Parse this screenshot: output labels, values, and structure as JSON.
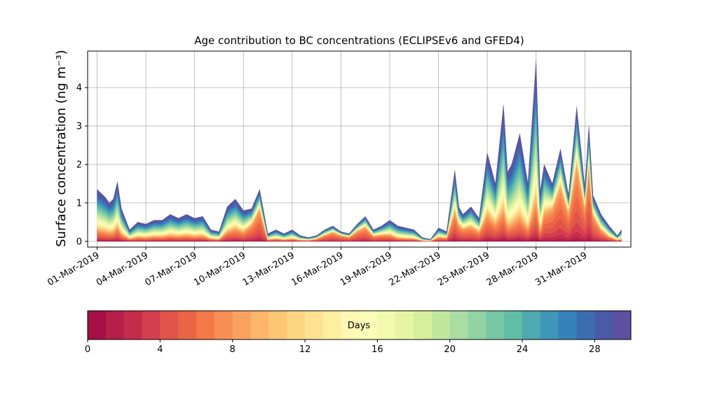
{
  "chart_data": {
    "type": "area",
    "title": "Age contribution to BC concentrations (ECLIPSEv6 and GFED4)",
    "ylabel": "Surface concentration (ng m⁻³)",
    "xlabel": "",
    "x_unit": "date",
    "ylim": [
      -0.15,
      4.95
    ],
    "xlim": [
      "2019-02-28T10:00",
      "2019-04-02T20:00"
    ],
    "grid": true,
    "stacked": true,
    "yticks": [
      0,
      1,
      2,
      3,
      4
    ],
    "xtick_labels": [
      "01-Mar-2019",
      "04-Mar-2019",
      "07-Mar-2019",
      "10-Mar-2019",
      "13-Mar-2019",
      "16-Mar-2019",
      "19-Mar-2019",
      "22-Mar-2019",
      "25-Mar-2019",
      "28-Mar-2019",
      "31-Mar-2019"
    ],
    "xtick_dates": [
      "2019-03-01",
      "2019-03-04",
      "2019-03-07",
      "2019-03-10",
      "2019-03-13",
      "2019-03-16",
      "2019-03-19",
      "2019-03-22",
      "2019-03-25",
      "2019-03-28",
      "2019-03-31"
    ],
    "total_concentration": {
      "x": [
        "2019-03-01T00:00",
        "2019-03-01T12:00",
        "2019-03-01T18:00",
        "2019-03-02T00:00",
        "2019-03-02T06:00",
        "2019-03-02T12:00",
        "2019-03-03T00:00",
        "2019-03-03T12:00",
        "2019-03-04T00:00",
        "2019-03-04T12:00",
        "2019-03-05T00:00",
        "2019-03-05T12:00",
        "2019-03-06T00:00",
        "2019-03-06T12:00",
        "2019-03-07T00:00",
        "2019-03-07T12:00",
        "2019-03-08T00:00",
        "2019-03-08T12:00",
        "2019-03-09T00:00",
        "2019-03-09T12:00",
        "2019-03-10T00:00",
        "2019-03-10T12:00",
        "2019-03-11T00:00",
        "2019-03-11T12:00",
        "2019-03-12T00:00",
        "2019-03-12T12:00",
        "2019-03-13T00:00",
        "2019-03-13T12:00",
        "2019-03-14T00:00",
        "2019-03-14T12:00",
        "2019-03-15T00:00",
        "2019-03-15T12:00",
        "2019-03-16T00:00",
        "2019-03-16T12:00",
        "2019-03-17T00:00",
        "2019-03-17T12:00",
        "2019-03-18T00:00",
        "2019-03-18T12:00",
        "2019-03-19T00:00",
        "2019-03-19T12:00",
        "2019-03-20T00:00",
        "2019-03-20T12:00",
        "2019-03-21T00:00",
        "2019-03-21T12:00",
        "2019-03-22T00:00",
        "2019-03-22T12:00",
        "2019-03-23T00:00",
        "2019-03-23T06:00",
        "2019-03-23T12:00",
        "2019-03-24T00:00",
        "2019-03-24T12:00",
        "2019-03-25T00:00",
        "2019-03-25T12:00",
        "2019-03-26T00:00",
        "2019-03-26T06:00",
        "2019-03-26T12:00",
        "2019-03-27T00:00",
        "2019-03-27T12:00",
        "2019-03-28T00:00",
        "2019-03-28T06:00",
        "2019-03-28T12:00",
        "2019-03-29T00:00",
        "2019-03-29T12:00",
        "2019-03-30T00:00",
        "2019-03-30T12:00",
        "2019-03-31T00:00",
        "2019-03-31T06:00",
        "2019-03-31T12:00",
        "2019-04-01T00:00",
        "2019-04-01T12:00",
        "2019-04-02T00:00",
        "2019-04-02T06:00"
      ],
      "y": [
        1.35,
        1.15,
        1.0,
        1.1,
        1.55,
        0.85,
        0.3,
        0.5,
        0.45,
        0.55,
        0.55,
        0.7,
        0.6,
        0.7,
        0.6,
        0.65,
        0.3,
        0.25,
        0.9,
        1.1,
        0.8,
        0.85,
        1.35,
        0.2,
        0.3,
        0.2,
        0.3,
        0.15,
        0.1,
        0.15,
        0.3,
        0.4,
        0.25,
        0.2,
        0.45,
        0.65,
        0.3,
        0.4,
        0.55,
        0.4,
        0.35,
        0.3,
        0.1,
        0.05,
        0.35,
        0.25,
        1.85,
        0.9,
        0.7,
        0.9,
        0.6,
        2.3,
        1.5,
        3.55,
        1.8,
        2.0,
        2.8,
        1.5,
        4.7,
        1.3,
        2.0,
        1.5,
        2.4,
        1.2,
        3.5,
        1.4,
        3.0,
        1.2,
        0.7,
        0.4,
        0.15,
        0.3
      ]
    },
    "young_fraction": [
      0.05,
      0.05,
      0.05,
      0.05,
      0.06,
      0.05,
      0.05,
      0.05,
      0.05,
      0.05,
      0.05,
      0.05,
      0.05,
      0.05,
      0.05,
      0.05,
      0.05,
      0.05,
      0.08,
      0.1,
      0.1,
      0.3,
      0.5,
      0.05,
      0.05,
      0.05,
      0.05,
      0.05,
      0.1,
      0.2,
      0.35,
      0.45,
      0.5,
      0.4,
      0.45,
      0.4,
      0.25,
      0.2,
      0.1,
      0.05,
      0.05,
      0.05,
      0.05,
      0.05,
      0.1,
      0.15,
      0.2,
      0.25,
      0.25,
      0.2,
      0.2,
      0.1,
      0.1,
      0.05,
      0.05,
      0.05,
      0.05,
      0.05,
      0.05,
      0.05,
      0.15,
      0.4,
      0.45,
      0.5,
      0.4,
      0.5,
      0.6,
      0.4,
      0.2,
      0.1,
      0.05,
      0.05
    ],
    "colorbar": {
      "label": "Days",
      "range": [
        0,
        30
      ],
      "bins": 30,
      "ticks": [
        0,
        4,
        8,
        12,
        16,
        20,
        24,
        28
      ],
      "colormap": "Spectral",
      "colors": [
        "#a50f45",
        "#b51f48",
        "#c52c4b",
        "#d53e4f",
        "#e0544a",
        "#eb6545",
        "#f47848",
        "#f78e54",
        "#f9a25f",
        "#fcb56a",
        "#fdc675",
        "#fdd582",
        "#fee291",
        "#feee9f",
        "#fff8b2",
        "#fbfdb8",
        "#f2faad",
        "#e5f5a2",
        "#d5ef9c",
        "#c1e69e",
        "#a9dda2",
        "#91d3a4",
        "#77c8a5",
        "#62bda7",
        "#4eaab0",
        "#3e96b8",
        "#3582ba",
        "#3c6cb0",
        "#4a5aa8",
        "#5e4fa2"
      ]
    }
  }
}
